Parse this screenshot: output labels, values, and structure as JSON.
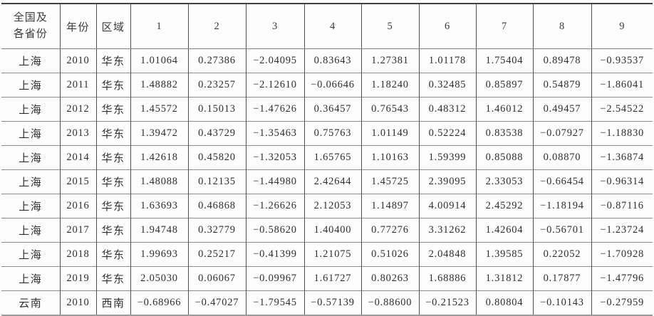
{
  "table": {
    "header": {
      "province_line1": "全国及",
      "province_line2": "各省份",
      "year": "年份",
      "region": "区域",
      "value_cols": [
        "1",
        "2",
        "3",
        "4",
        "5",
        "6",
        "7",
        "8",
        "9"
      ]
    },
    "rows": [
      {
        "province": "上海",
        "year": "2010",
        "region": "华东",
        "values": [
          "1.01064",
          "0.27386",
          "−2.04095",
          "0.83643",
          "1.27381",
          "1.01178",
          "1.75404",
          "0.89478",
          "−0.93537"
        ]
      },
      {
        "province": "上海",
        "year": "2011",
        "region": "华东",
        "values": [
          "1.48882",
          "0.23257",
          "−2.12610",
          "−0.06646",
          "1.18240",
          "0.32485",
          "0.85897",
          "0.54879",
          "−1.86041"
        ]
      },
      {
        "province": "上海",
        "year": "2012",
        "region": "华东",
        "values": [
          "1.45572",
          "0.15013",
          "−1.47626",
          "0.36457",
          "0.76543",
          "0.48312",
          "1.46012",
          "0.49457",
          "−2.54522"
        ]
      },
      {
        "province": "上海",
        "year": "2013",
        "region": "华东",
        "values": [
          "1.39472",
          "0.43729",
          "−1.35463",
          "0.75763",
          "1.01149",
          "0.52224",
          "0.83538",
          "−0.07927",
          "−1.18830"
        ]
      },
      {
        "province": "上海",
        "year": "2014",
        "region": "华东",
        "values": [
          "1.42618",
          "0.45820",
          "−1.32053",
          "1.65765",
          "1.10163",
          "1.59399",
          "0.85088",
          "0.08870",
          "−1.36874"
        ]
      },
      {
        "province": "上海",
        "year": "2015",
        "region": "华东",
        "values": [
          "1.48088",
          "0.12135",
          "−1.44980",
          "2.42644",
          "1.45725",
          "2.39095",
          "2.33053",
          "−0.66454",
          "−0.96314"
        ]
      },
      {
        "province": "上海",
        "year": "2016",
        "region": "华东",
        "values": [
          "1.63693",
          "0.46868",
          "−1.26626",
          "2.12053",
          "1.14897",
          "4.00914",
          "2.45292",
          "−1.18194",
          "−0.87116"
        ]
      },
      {
        "province": "上海",
        "year": "2017",
        "region": "华东",
        "values": [
          "1.94748",
          "0.32779",
          "−0.58620",
          "1.40400",
          "0.77276",
          "3.31262",
          "1.42604",
          "−0.56701",
          "−1.23724"
        ]
      },
      {
        "province": "上海",
        "year": "2018",
        "region": "华东",
        "values": [
          "1.99693",
          "0.25217",
          "−0.41399",
          "1.21075",
          "0.51026",
          "2.04848",
          "1.39585",
          "0.22052",
          "−1.70928"
        ]
      },
      {
        "province": "上海",
        "year": "2019",
        "region": "华东",
        "values": [
          "2.05030",
          "0.06067",
          "−0.09967",
          "1.61727",
          "0.80263",
          "1.68886",
          "1.31812",
          "0.17877",
          "−1.47796"
        ]
      },
      {
        "province": "云南",
        "year": "2010",
        "region": "西南",
        "values": [
          "−0.68966",
          "−0.47027",
          "−1.79545",
          "−0.57139",
          "−0.88600",
          "−0.21523",
          "0.80804",
          "−0.10143",
          "−0.27959"
        ]
      }
    ]
  }
}
